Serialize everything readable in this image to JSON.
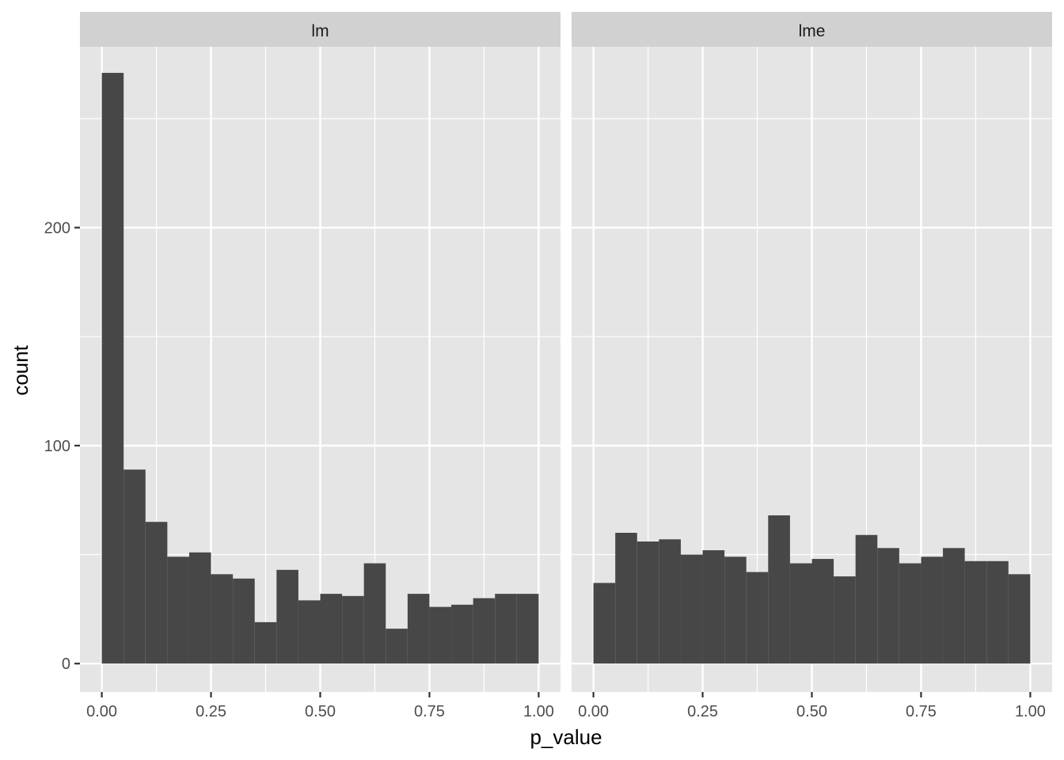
{
  "chart_data": {
    "type": "bar",
    "subtype": "histogram-faceted",
    "xlabel": "p_value",
    "ylabel": "count",
    "xlim": [
      -0.05,
      1.05
    ],
    "ylim": [
      -13,
      283
    ],
    "x_ticks": [
      0.0,
      0.25,
      0.5,
      0.75,
      1.0
    ],
    "x_tick_labels": [
      "0.00",
      "0.25",
      "0.50",
      "0.75",
      "1.00"
    ],
    "y_ticks": [
      0,
      100,
      200
    ],
    "y_tick_labels": [
      "0",
      "100",
      "200"
    ],
    "y_minor_ticks": [
      50,
      150,
      250
    ],
    "x_minor_ticks": [
      0.125,
      0.375,
      0.625,
      0.875
    ],
    "bin_width": 0.05,
    "bins_start": 0.0,
    "grid": true,
    "bar_color": "#474747",
    "panel_background": "#e5e5e5",
    "strip_background": "#d1d1d1",
    "grid_color": "#ffffff",
    "facets": [
      {
        "label": "lm",
        "values": [
          271,
          89,
          65,
          49,
          51,
          41,
          39,
          19,
          43,
          29,
          32,
          31,
          46,
          16,
          32,
          26,
          27,
          30,
          32,
          32
        ]
      },
      {
        "label": "lme",
        "values": [
          37,
          60,
          56,
          57,
          50,
          52,
          49,
          42,
          68,
          46,
          48,
          40,
          59,
          53,
          46,
          49,
          53,
          47,
          47,
          41
        ]
      }
    ]
  }
}
